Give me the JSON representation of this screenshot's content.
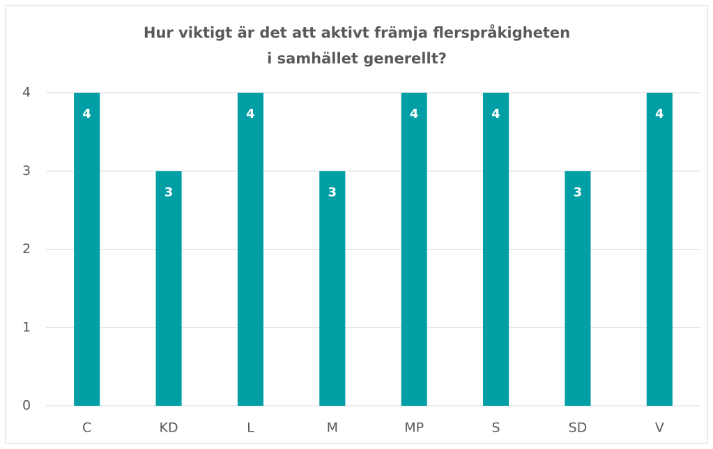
{
  "chart_data": {
    "type": "bar",
    "title": [
      "Hur viktigt är det att aktivt främja flerspråkigheten",
      "i samhället generellt?"
    ],
    "categories": [
      "C",
      "KD",
      "L",
      "M",
      "MP",
      "S",
      "SD",
      "V"
    ],
    "values": [
      4,
      3,
      4,
      3,
      4,
      4,
      3,
      4
    ],
    "color": "#009fa6",
    "ylim": [
      0,
      4
    ],
    "yticks": [
      0,
      1,
      2,
      3,
      4
    ],
    "grid": true
  }
}
